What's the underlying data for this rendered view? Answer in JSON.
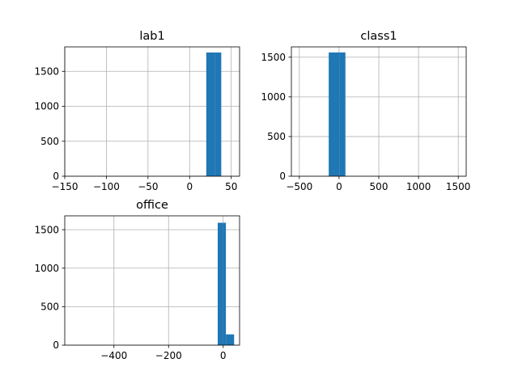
{
  "chart_data": [
    {
      "type": "bar",
      "title": "lab1",
      "grid": true,
      "xlim": [
        -150,
        60
      ],
      "ylim": [
        0,
        1850
      ],
      "xticks": [
        -150,
        -100,
        -50,
        0,
        50
      ],
      "xtick_labels": [
        "−150",
        "−100",
        "−50",
        "0",
        "50"
      ],
      "yticks": [
        0,
        500,
        1000,
        1500
      ],
      "ytick_labels": [
        "0",
        "500",
        "1000",
        "1500"
      ],
      "bins": [
        {
          "x0": 0,
          "x1": 10,
          "count": 3
        },
        {
          "x0": 10,
          "x1": 20,
          "count": 5
        },
        {
          "x0": 20,
          "x1": 30,
          "count": 1770
        },
        {
          "x0": 30,
          "x1": 38,
          "count": 1770
        }
      ]
    },
    {
      "type": "bar",
      "title": "class1",
      "grid": true,
      "xlim": [
        -600,
        1600
      ],
      "ylim": [
        0,
        1630
      ],
      "xticks": [
        -500,
        0,
        500,
        1000,
        1500
      ],
      "xtick_labels": [
        "−500",
        "0",
        "500",
        "1000",
        "1500"
      ],
      "yticks": [
        0,
        500,
        1000,
        1500
      ],
      "ytick_labels": [
        "0",
        "500",
        "1000",
        "1500"
      ],
      "bins": [
        {
          "x0": -130,
          "x1": -60,
          "count": 1560
        },
        {
          "x0": -60,
          "x1": 10,
          "count": 1560
        },
        {
          "x0": 10,
          "x1": 80,
          "count": 1560
        }
      ]
    },
    {
      "type": "bar",
      "title": "office",
      "grid": true,
      "xlim": [
        -580,
        60
      ],
      "ylim": [
        0,
        1680
      ],
      "xticks": [
        -400,
        -200,
        0
      ],
      "xtick_labels": [
        "−400",
        "−200",
        "0"
      ],
      "yticks": [
        0,
        500,
        1000,
        1500
      ],
      "ytick_labels": [
        "0",
        "500",
        "1000",
        "1500"
      ],
      "bins": [
        {
          "x0": -20,
          "x1": 0,
          "count": 1590
        },
        {
          "x0": 0,
          "x1": 10,
          "count": 1590
        },
        {
          "x0": 10,
          "x1": 40,
          "count": 140
        }
      ]
    }
  ]
}
